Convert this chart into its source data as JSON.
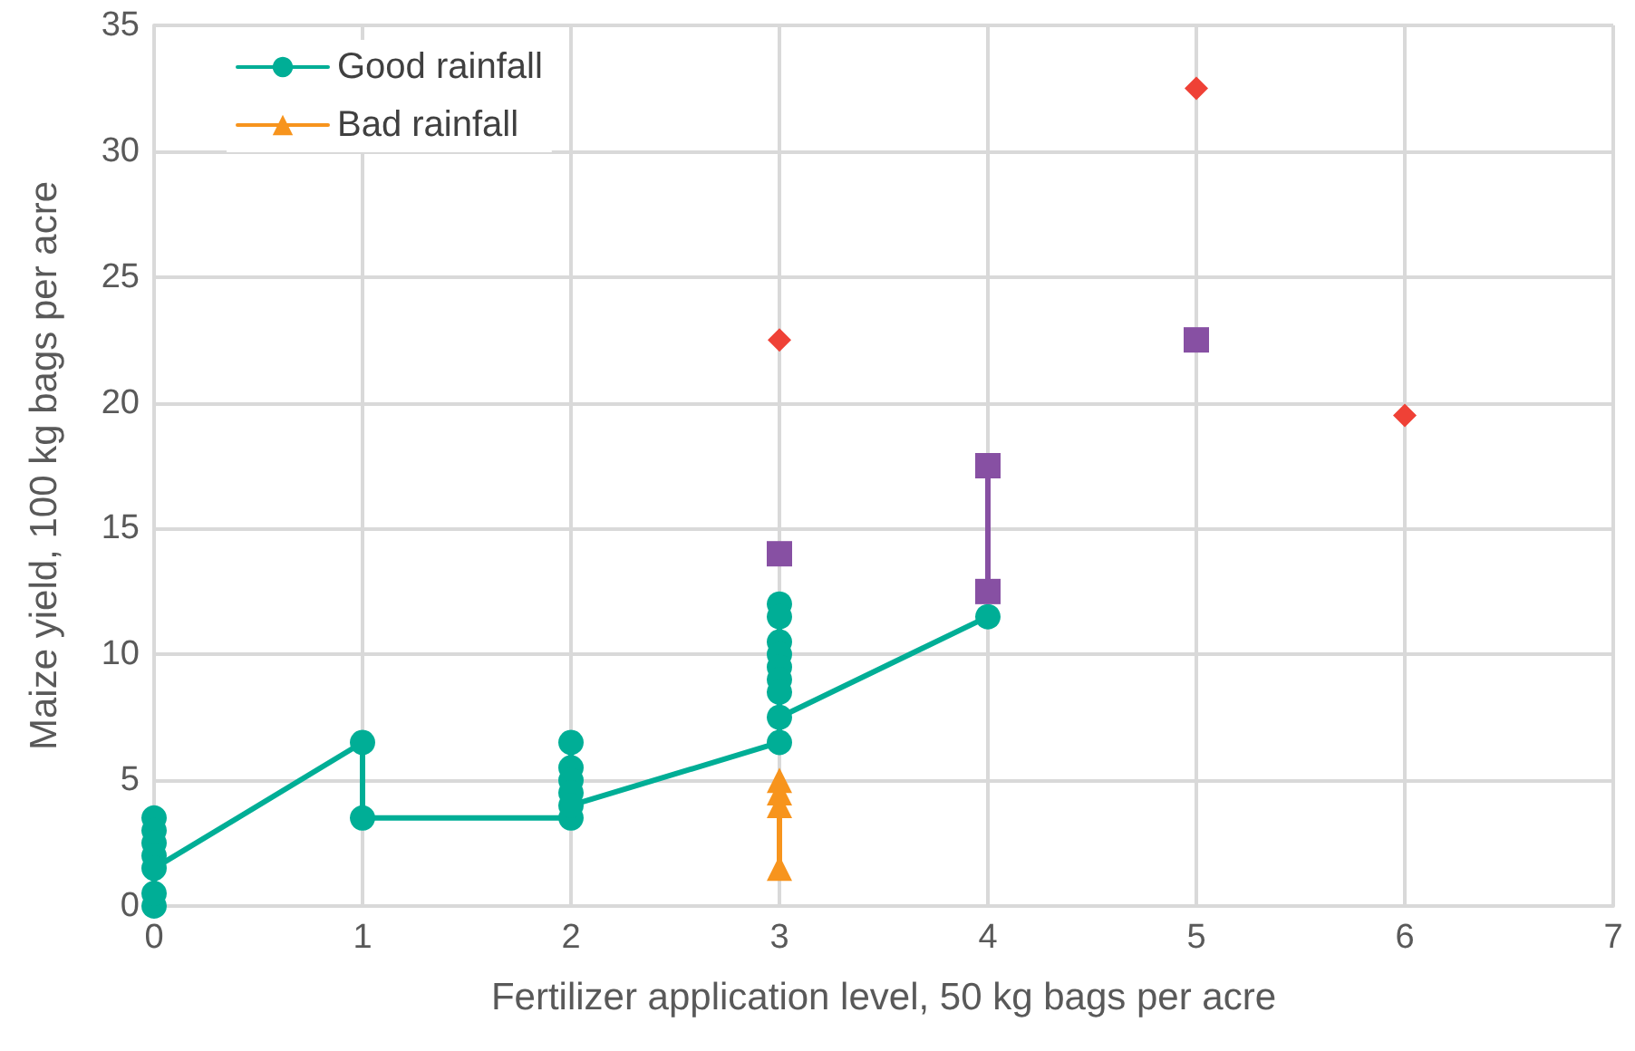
{
  "chart_data": {
    "type": "line",
    "xlabel": "Fertilizer application level, 50 kg bags per acre",
    "ylabel": "Maize yield, 100 kg bags per acre",
    "xlim": [
      0,
      7
    ],
    "xticks": [
      0,
      1,
      2,
      3,
      4,
      5,
      6,
      7
    ],
    "ylim": [
      0,
      35
    ],
    "yticks": [
      0,
      5,
      10,
      15,
      20,
      25,
      30,
      35
    ],
    "grid": true,
    "legend": "top left",
    "series": [
      {
        "name": "Good rainfall",
        "color": "#00ae96",
        "marker": "circle",
        "x": [
          0,
          0,
          0,
          0,
          0,
          0,
          0,
          1,
          1,
          2,
          2,
          2,
          2,
          2,
          2,
          3,
          3,
          3,
          3,
          3,
          3,
          3,
          3,
          3,
          4
        ],
        "values": [
          0,
          0.5,
          3.5,
          3,
          2.5,
          2,
          1.5,
          6.5,
          3.5,
          3.5,
          6.5,
          5.5,
          5,
          4.5,
          4,
          6.5,
          12,
          11.5,
          10.5,
          10,
          9.5,
          9,
          8.5,
          7.5,
          11.5
        ]
      },
      {
        "name": "Bad rainfall",
        "color": "#f7941d",
        "marker": "triangle",
        "x": [
          3,
          3,
          3,
          3
        ],
        "values": [
          5,
          4.5,
          4,
          1.5
        ]
      },
      {
        "type": "scatter",
        "color": "#ef4136",
        "marker": "diamond",
        "x": [
          3,
          5,
          6
        ],
        "values": [
          22.5,
          32.5,
          19.5
        ]
      },
      {
        "color": "#8750a3",
        "marker": "square",
        "x": [
          3,
          3.5,
          4,
          4,
          4.5,
          5
        ],
        "values": [
          14,
          null,
          17.5,
          12.5,
          null,
          22.5
        ]
      }
    ]
  }
}
